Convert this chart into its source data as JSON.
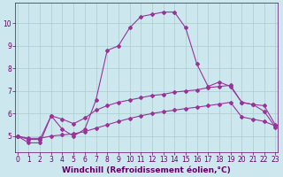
{
  "xlabel": "Windchill (Refroidissement éolien,°C)",
  "background_color": "#cce8ee",
  "line_color1": "#993399",
  "line_color2": "#993399",
  "line_color3": "#993399",
  "x_ticks": [
    0,
    1,
    2,
    3,
    4,
    5,
    6,
    7,
    8,
    9,
    10,
    11,
    12,
    13,
    14,
    15,
    16,
    17,
    18,
    19,
    20,
    21,
    22,
    23
  ],
  "ylim": [
    4.3,
    10.9
  ],
  "xlim": [
    -0.2,
    23.2
  ],
  "y_ticks": [
    5,
    6,
    7,
    8,
    9,
    10
  ],
  "line1_x": [
    0,
    1,
    2,
    3,
    4,
    5,
    6,
    7,
    8,
    9,
    10,
    11,
    12,
    13,
    14,
    15,
    16,
    17,
    18,
    19,
    20,
    21,
    22,
    23
  ],
  "line1_y": [
    5.0,
    4.7,
    4.7,
    5.9,
    5.3,
    5.0,
    5.3,
    6.6,
    8.8,
    9.0,
    9.8,
    10.3,
    10.4,
    10.5,
    10.5,
    9.8,
    8.2,
    7.2,
    7.4,
    7.2,
    6.5,
    6.4,
    6.1,
    5.4
  ],
  "line2_x": [
    0,
    1,
    2,
    3,
    4,
    5,
    6,
    7,
    8,
    9,
    10,
    11,
    12,
    13,
    14,
    15,
    16,
    17,
    18,
    19,
    20,
    21,
    22,
    23
  ],
  "line2_y": [
    5.0,
    4.85,
    4.85,
    5.9,
    5.75,
    5.55,
    5.8,
    6.15,
    6.35,
    6.5,
    6.6,
    6.7,
    6.8,
    6.85,
    6.95,
    7.0,
    7.05,
    7.15,
    7.2,
    7.25,
    6.5,
    6.4,
    6.35,
    5.5
  ],
  "line3_x": [
    0,
    1,
    2,
    3,
    4,
    5,
    6,
    7,
    8,
    9,
    10,
    11,
    12,
    13,
    14,
    15,
    16,
    17,
    18,
    19,
    20,
    21,
    22,
    23
  ],
  "line3_y": [
    5.0,
    4.9,
    4.9,
    5.0,
    5.05,
    5.1,
    5.2,
    5.35,
    5.5,
    5.65,
    5.78,
    5.9,
    6.0,
    6.08,
    6.15,
    6.22,
    6.28,
    6.35,
    6.42,
    6.5,
    5.85,
    5.75,
    5.65,
    5.45
  ],
  "grid_color": "#aacccc",
  "grid_color2": "#bbdddd",
  "marker": "D",
  "markersize": 2.0,
  "linewidth": 0.8,
  "font_color": "#660066",
  "tick_fontsize": 5.5,
  "xlabel_fontsize": 6.5
}
